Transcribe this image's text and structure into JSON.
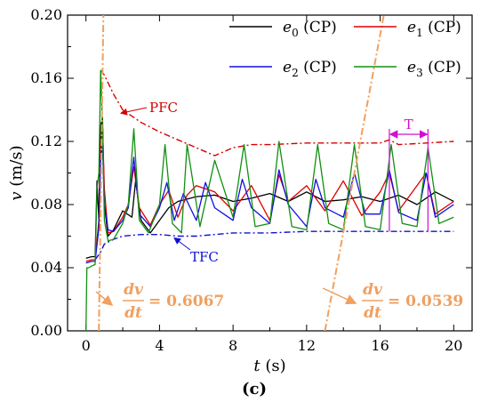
{
  "chart_data": {
    "type": "line",
    "xlabel": {
      "symbol": "t",
      "unit": " (s)"
    },
    "ylabel": {
      "symbol": "v",
      "unit": " (m/s)"
    },
    "xlim": [
      -1,
      21
    ],
    "ylim": [
      0,
      0.2
    ],
    "x_ticks": [
      0,
      4,
      8,
      12,
      16,
      20
    ],
    "x_tick_labels": [
      "0",
      "4",
      "8",
      "12",
      "16",
      "20"
    ],
    "y_ticks": [
      0,
      0.04,
      0.08,
      0.12,
      0.16,
      0.2
    ],
    "y_tick_labels": [
      "0.00",
      "0.04",
      "0.08",
      "0.12",
      "0.16",
      "0.20"
    ],
    "grid": false,
    "legend_position": "top-right",
    "series": [
      {
        "name": "e0 (CP)",
        "symbol": "e",
        "sub": "0",
        "suffix": " (CP)",
        "color": "#000000",
        "x": [
          0,
          0.3,
          0.5,
          0.6,
          0.7,
          0.8,
          0.9,
          1.0,
          1.2,
          1.5,
          2.0,
          2.5,
          2.7,
          3.0,
          3.5,
          4.0,
          4.5,
          5.0,
          6.0,
          7.0,
          8.0,
          9.0,
          10.0,
          11.0,
          12.0,
          13.0,
          14.0,
          15.0,
          16.0,
          17.0,
          18.0,
          19.0,
          20.0
        ],
        "y": [
          0.046,
          0.047,
          0.047,
          0.095,
          0.07,
          0.13,
          0.135,
          0.08,
          0.06,
          0.064,
          0.076,
          0.072,
          0.095,
          0.07,
          0.062,
          0.07,
          0.078,
          0.082,
          0.085,
          0.086,
          0.082,
          0.084,
          0.087,
          0.082,
          0.088,
          0.082,
          0.083,
          0.085,
          0.082,
          0.086,
          0.08,
          0.088,
          0.082
        ]
      },
      {
        "name": "e1 (CP)",
        "symbol": "e",
        "sub": "1",
        "suffix": " (CP)",
        "color": "#e00000",
        "x": [
          0,
          0.3,
          0.5,
          0.7,
          0.8,
          0.9,
          1.0,
          1.2,
          1.5,
          2.0,
          2.3,
          2.6,
          2.9,
          3.5,
          4.0,
          4.5,
          5.0,
          5.5,
          6.0,
          7.0,
          8.0,
          9.0,
          10.0,
          10.5,
          11.0,
          12.0,
          13.0,
          14.0,
          15.0,
          16.0,
          16.5,
          17.0,
          18.0,
          18.5,
          19.0,
          20.0
        ],
        "y": [
          0.044,
          0.045,
          0.045,
          0.07,
          0.115,
          0.13,
          0.09,
          0.062,
          0.063,
          0.072,
          0.08,
          0.104,
          0.078,
          0.067,
          0.08,
          0.089,
          0.072,
          0.086,
          0.092,
          0.088,
          0.076,
          0.092,
          0.07,
          0.099,
          0.082,
          0.092,
          0.076,
          0.095,
          0.073,
          0.088,
          0.1,
          0.076,
          0.092,
          0.1,
          0.074,
          0.082
        ]
      },
      {
        "name": "e2 (CP)",
        "symbol": "e",
        "sub": "2",
        "suffix": " (CP)",
        "color": "#1010e0",
        "x": [
          0,
          0.3,
          0.5,
          0.7,
          0.8,
          0.9,
          1.0,
          1.2,
          1.5,
          2.0,
          2.3,
          2.6,
          2.9,
          3.5,
          4.0,
          4.4,
          4.8,
          5.3,
          6.0,
          6.5,
          7.0,
          8.0,
          8.5,
          9.0,
          10.0,
          10.5,
          11.0,
          12.0,
          12.5,
          13.0,
          14.0,
          14.6,
          15.2,
          16.0,
          16.5,
          17.0,
          18.0,
          18.5,
          19.0,
          20.0
        ],
        "y": [
          0.043,
          0.044,
          0.044,
          0.065,
          0.11,
          0.118,
          0.08,
          0.064,
          0.063,
          0.07,
          0.078,
          0.11,
          0.074,
          0.066,
          0.078,
          0.094,
          0.07,
          0.087,
          0.07,
          0.094,
          0.078,
          0.07,
          0.096,
          0.078,
          0.068,
          0.102,
          0.08,
          0.066,
          0.096,
          0.078,
          0.072,
          0.1,
          0.074,
          0.074,
          0.102,
          0.075,
          0.07,
          0.1,
          0.072,
          0.08
        ]
      },
      {
        "name": "e3 (CP)",
        "symbol": "e",
        "sub": "3",
        "suffix": " (CP)",
        "color": "#109010",
        "x": [
          0,
          0.05,
          0.15,
          0.3,
          0.5,
          0.6,
          0.7,
          0.8,
          0.9,
          1.0,
          1.2,
          1.5,
          2.0,
          2.3,
          2.6,
          2.9,
          3.4,
          4.0,
          4.3,
          4.7,
          5.2,
          5.5,
          6.2,
          7.0,
          8.0,
          8.6,
          9.2,
          10.0,
          10.5,
          11.2,
          12.0,
          12.6,
          13.2,
          14.0,
          14.6,
          15.2,
          16.0,
          16.6,
          17.2,
          18.0,
          18.6,
          19.2,
          20.0
        ],
        "y": [
          0.0,
          0.04,
          0.04,
          0.041,
          0.042,
          0.09,
          0.1,
          0.165,
          0.13,
          0.07,
          0.057,
          0.058,
          0.068,
          0.08,
          0.128,
          0.07,
          0.062,
          0.08,
          0.118,
          0.068,
          0.062,
          0.118,
          0.066,
          0.108,
          0.072,
          0.118,
          0.066,
          0.068,
          0.12,
          0.066,
          0.064,
          0.118,
          0.068,
          0.064,
          0.118,
          0.066,
          0.064,
          0.118,
          0.068,
          0.066,
          0.116,
          0.068,
          0.072
        ]
      }
    ],
    "envelopes": [
      {
        "label": "PFC",
        "color": "#d40000",
        "x": [
          0.8,
          1.0,
          1.5,
          2.0,
          3.0,
          4.0,
          5.0,
          6.0,
          7.0,
          8.0,
          9.0,
          10.0,
          12.0,
          14.0,
          16.0,
          16.5,
          17.0,
          18.5,
          20.0
        ],
        "y": [
          0.165,
          0.162,
          0.15,
          0.14,
          0.132,
          0.126,
          0.121,
          0.116,
          0.111,
          0.116,
          0.118,
          0.118,
          0.119,
          0.119,
          0.119,
          0.121,
          0.118,
          0.119,
          0.12
        ]
      },
      {
        "label": "TFC",
        "color": "#1010d0",
        "x": [
          0.5,
          0.8,
          1.0,
          1.5,
          2.0,
          3.0,
          4.0,
          5.0,
          6.0,
          7.0,
          8.0,
          9.0,
          10.0,
          12.0,
          14.0,
          16.0,
          18.0,
          20.0
        ],
        "y": [
          0.045,
          0.05,
          0.055,
          0.058,
          0.06,
          0.061,
          0.061,
          0.06,
          0.06,
          0.061,
          0.062,
          0.062,
          0.062,
          0.063,
          0.063,
          0.063,
          0.063,
          0.063
        ]
      }
    ],
    "period_marker": {
      "label": "T",
      "x_start": 16.5,
      "x_end": 18.6,
      "y": 0.12
    },
    "slope_annotations": [
      {
        "numerator": "dv",
        "denominator": "dt",
        "equals": "= 0.6067",
        "line": {
          "x": [
            0.7,
            0.95
          ],
          "y": [
            0.0,
            0.2
          ]
        }
      },
      {
        "numerator": "dv",
        "denominator": "dt",
        "equals": "= 0.0539",
        "line": {
          "x": [
            13.0,
            16.2
          ],
          "y": [
            0.0,
            0.2
          ]
        }
      }
    ],
    "panel_label": "(c)"
  }
}
